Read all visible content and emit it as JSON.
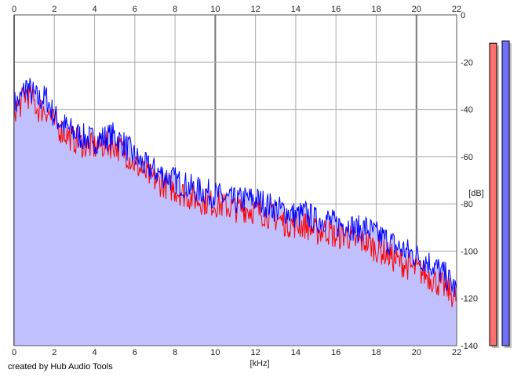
{
  "chart_data": {
    "type": "line",
    "xlabel": "[kHz]",
    "ylabel": "[dB]",
    "xlim": [
      0,
      22
    ],
    "ylim": [
      -140,
      0
    ],
    "x_ticks": [
      0,
      2,
      4,
      6,
      8,
      10,
      12,
      14,
      16,
      18,
      20,
      22
    ],
    "y_ticks": [
      0,
      -20,
      -40,
      -60,
      -80,
      -100,
      -120,
      -140
    ],
    "grid": true,
    "fill_color": "#c0c0ff",
    "series": [
      {
        "color": "#0000ff",
        "x": [
          0,
          0.3,
          0.6,
          0.9,
          1.2,
          1.6,
          2,
          2.5,
          3,
          3.5,
          4,
          4.5,
          5,
          5.5,
          6,
          6.5,
          7,
          7.5,
          8,
          8.5,
          9,
          9.5,
          10,
          10.5,
          11,
          11.5,
          12,
          12.5,
          13,
          13.5,
          14,
          14.5,
          15,
          15.5,
          16,
          16.5,
          17,
          17.5,
          18,
          18.5,
          19,
          19.5,
          20,
          20.5,
          21,
          21.5,
          22
        ],
        "y": [
          -38,
          -36,
          -30,
          -33,
          -36,
          -35,
          -43,
          -47,
          -50,
          -52,
          -53,
          -52,
          -51,
          -55,
          -60,
          -64,
          -66,
          -68,
          -70,
          -72,
          -74,
          -75,
          -76,
          -78,
          -79,
          -78,
          -78,
          -80,
          -82,
          -83,
          -85,
          -84,
          -87,
          -86,
          -89,
          -88,
          -91,
          -90,
          -93,
          -95,
          -98,
          -100,
          -102,
          -104,
          -107,
          -111,
          -117
        ]
      },
      {
        "color": "#ff0000",
        "x": [
          0,
          0.3,
          0.6,
          0.9,
          1.2,
          1.6,
          2,
          2.5,
          3,
          3.5,
          4,
          4.5,
          5,
          5.5,
          6,
          6.5,
          7,
          7.5,
          8,
          8.5,
          9,
          9.5,
          10,
          10.5,
          11,
          11.5,
          12,
          12.5,
          13,
          13.5,
          14,
          14.5,
          15,
          15.5,
          16,
          16.5,
          17,
          17.5,
          18,
          18.5,
          19,
          19.5,
          20,
          20.5,
          21,
          21.5,
          22
        ],
        "y": [
          -40,
          -38,
          -33,
          -36,
          -40,
          -40,
          -46,
          -50,
          -53,
          -55,
          -56,
          -55,
          -55,
          -58,
          -63,
          -67,
          -70,
          -72,
          -74,
          -76,
          -78,
          -79,
          -80,
          -81,
          -82,
          -82,
          -83,
          -84,
          -86,
          -88,
          -89,
          -89,
          -92,
          -91,
          -94,
          -93,
          -96,
          -96,
          -99,
          -101,
          -104,
          -106,
          -108,
          -110,
          -113,
          -116,
          -120
        ]
      }
    ]
  },
  "meters": [
    {
      "color": "#ff7070",
      "level_db": -12
    },
    {
      "color": "#7070ff",
      "level_db": -11
    }
  ],
  "footer": {
    "credit": "created by Hub Audio Tools"
  }
}
